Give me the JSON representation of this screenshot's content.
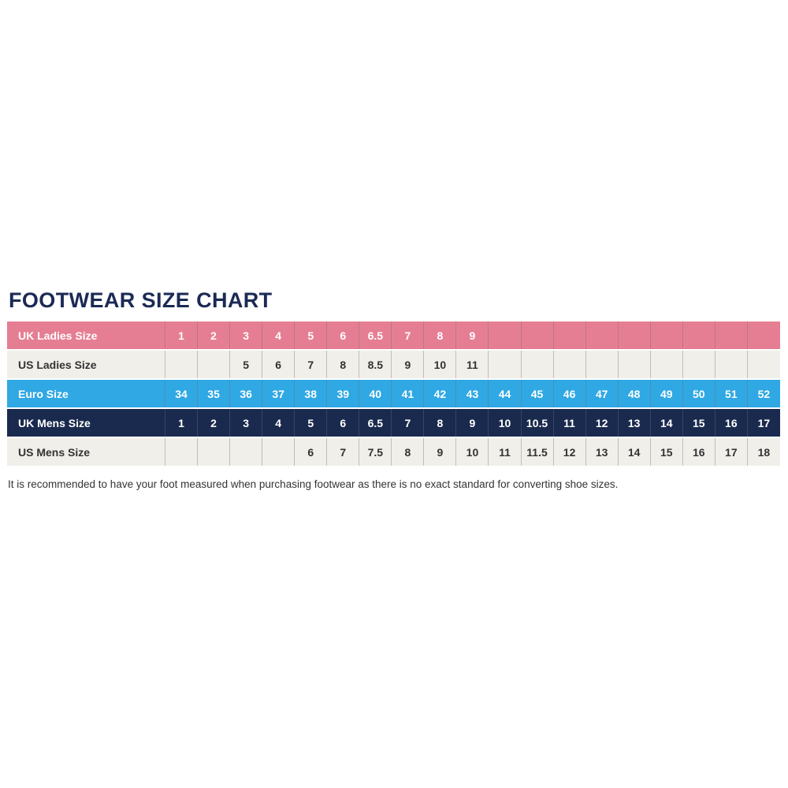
{
  "title": "FOOTWEAR SIZE CHART",
  "footnote": "It is recommended to have your foot measured when purchasing footwear as there is no exact standard for converting shoe sizes.",
  "colors": {
    "title_navy": "#1B2A55",
    "pink": "#E67E93",
    "cream": "#F0EFE9",
    "blue": "#2FA8E3",
    "navy": "#1A2A4E",
    "white_text": "#FFFFFF",
    "dark_text": "#333333"
  },
  "chart_data": {
    "type": "table",
    "title": "FOOTWEAR SIZE CHART",
    "num_size_columns": 19,
    "styles": {
      "pink": {
        "bg": "#E67E93",
        "text": "#FFFFFF"
      },
      "cream": {
        "bg": "#F0EFE9",
        "text": "#333333"
      },
      "blue": {
        "bg": "#2FA8E3",
        "text": "#FFFFFF"
      },
      "navy": {
        "bg": "#1A2A4E",
        "text": "#FFFFFF"
      }
    },
    "rows": [
      {
        "label": "UK Ladies Size",
        "style": "pink",
        "values": [
          "1",
          "2",
          "3",
          "4",
          "5",
          "6",
          "6.5",
          "7",
          "8",
          "9",
          "",
          "",
          "",
          "",
          "",
          "",
          "",
          "",
          ""
        ]
      },
      {
        "label": "US Ladies Size",
        "style": "cream",
        "values": [
          "",
          "",
          "5",
          "6",
          "7",
          "8",
          "8.5",
          "9",
          "10",
          "11",
          "",
          "",
          "",
          "",
          "",
          "",
          "",
          "",
          ""
        ]
      },
      {
        "label": "Euro Size",
        "style": "blue",
        "values": [
          "34",
          "35",
          "36",
          "37",
          "38",
          "39",
          "40",
          "41",
          "42",
          "43",
          "44",
          "45",
          "46",
          "47",
          "48",
          "49",
          "50",
          "51",
          "52"
        ]
      },
      {
        "label": "UK Mens Size",
        "style": "navy",
        "values": [
          "1",
          "2",
          "3",
          "4",
          "5",
          "6",
          "6.5",
          "7",
          "8",
          "9",
          "10",
          "10.5",
          "11",
          "12",
          "13",
          "14",
          "15",
          "16",
          "17"
        ]
      },
      {
        "label": "US Mens Size",
        "style": "cream",
        "values": [
          "",
          "",
          "",
          "",
          "6",
          "7",
          "7.5",
          "8",
          "9",
          "10",
          "11",
          "11.5",
          "12",
          "13",
          "14",
          "15",
          "16",
          "17",
          "18"
        ]
      }
    ]
  }
}
